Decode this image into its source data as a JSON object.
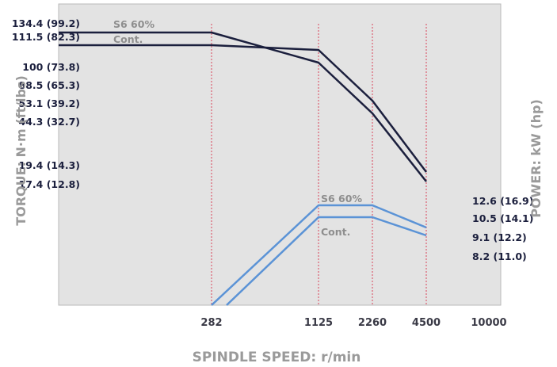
{
  "chart_data": {
    "type": "line",
    "xlabel": "SPINDLE SPEED: r/min",
    "y_left_label": "TORQUE: N·m (ft/lbs)",
    "y_right_label": "POWER: kW (hp)",
    "x_ticks": [
      "282",
      "1125",
      "2260",
      "4500",
      "10000"
    ],
    "x_gridlines": [
      "282",
      "1125",
      "2260",
      "4500"
    ],
    "left_tick_labels": [
      "134.4 (99.2)",
      "111.5 (82.3)",
      "100 (73.8)",
      "88.5 (65.3)",
      "53.1 (39.2)",
      "44.3 (32.7)",
      "19.4 (14.3)",
      "17.4 (12.8)"
    ],
    "right_tick_labels": [
      "12.6 (16.9)",
      "10.5 (14.1)",
      "9.1 (12.2)",
      "8.2 (11.0)"
    ],
    "series": [
      {
        "name": "S6 60%",
        "quantity": "torque",
        "color": "#1b1f3d",
        "x": [
          282,
          1125,
          2260,
          4500
        ],
        "y": [
          134.4,
          100,
          53.1,
          19.4
        ]
      },
      {
        "name": "Cont.",
        "quantity": "torque",
        "color": "#1b1f3d",
        "x": [
          282,
          1125,
          2260,
          4500
        ],
        "y": [
          111.5,
          88.5,
          44.3,
          17.4
        ]
      },
      {
        "name": "S6 60%",
        "quantity": "power",
        "color": "#5b93d6",
        "x": [
          282,
          1125,
          2260,
          4500
        ],
        "y": [
          null,
          12.6,
          12.6,
          10.5
        ]
      },
      {
        "name": "Cont.",
        "quantity": "power",
        "color": "#5b93d6",
        "x": [
          282,
          1125,
          2260,
          4500
        ],
        "y": [
          null,
          10.5,
          10.5,
          9.1
        ]
      }
    ],
    "grid": "vertical dashed at speed breakpoints",
    "background": "#e3e3e3"
  }
}
